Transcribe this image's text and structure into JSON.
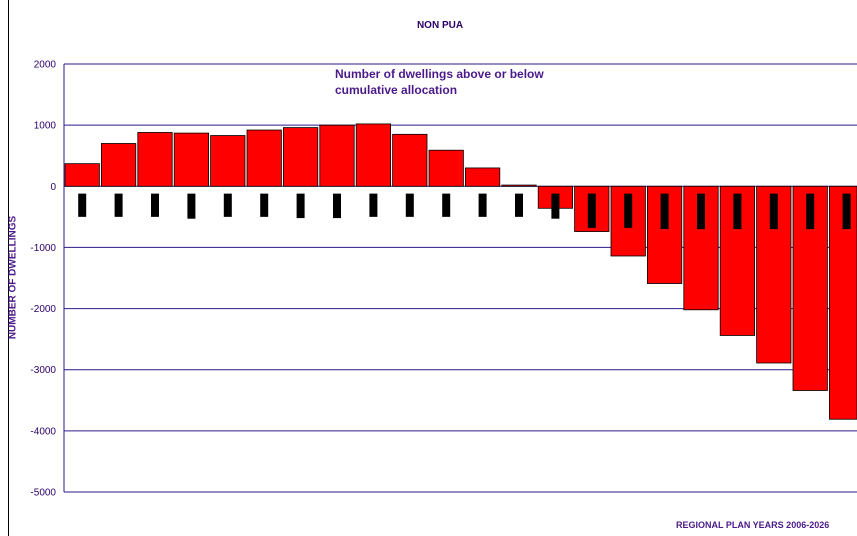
{
  "chart_data": {
    "type": "bar",
    "title": "NON PUA",
    "annotation_line1": "Number of dwellings above or below",
    "annotation_line2": "cumulative allocation",
    "ylabel": "NUMBER OF DWELLINGS",
    "xlabel": "REGIONAL PLAN YEARS 2006-2026",
    "ylim": [
      -5000,
      2000
    ],
    "yticks": [
      2000,
      1000,
      0,
      -1000,
      -2000,
      -3000,
      -4000,
      -5000
    ],
    "grid": true,
    "series": [
      {
        "color": "#ff0000",
        "values": [
          370,
          700,
          880,
          870,
          830,
          920,
          960,
          1000,
          1020,
          850,
          590,
          300,
          20,
          -360,
          -740,
          -1140,
          -1590,
          -2020,
          -2440,
          -2890,
          -3340,
          -3810
        ]
      },
      {
        "color": "#000000",
        "values": [
          -500,
          -500,
          -500,
          -530,
          -500,
          -500,
          -520,
          -520,
          -500,
          -500,
          -500,
          -500,
          -500,
          -530,
          -680,
          -680,
          -700,
          -700,
          -700,
          -700,
          -700,
          -700
        ]
      }
    ]
  }
}
